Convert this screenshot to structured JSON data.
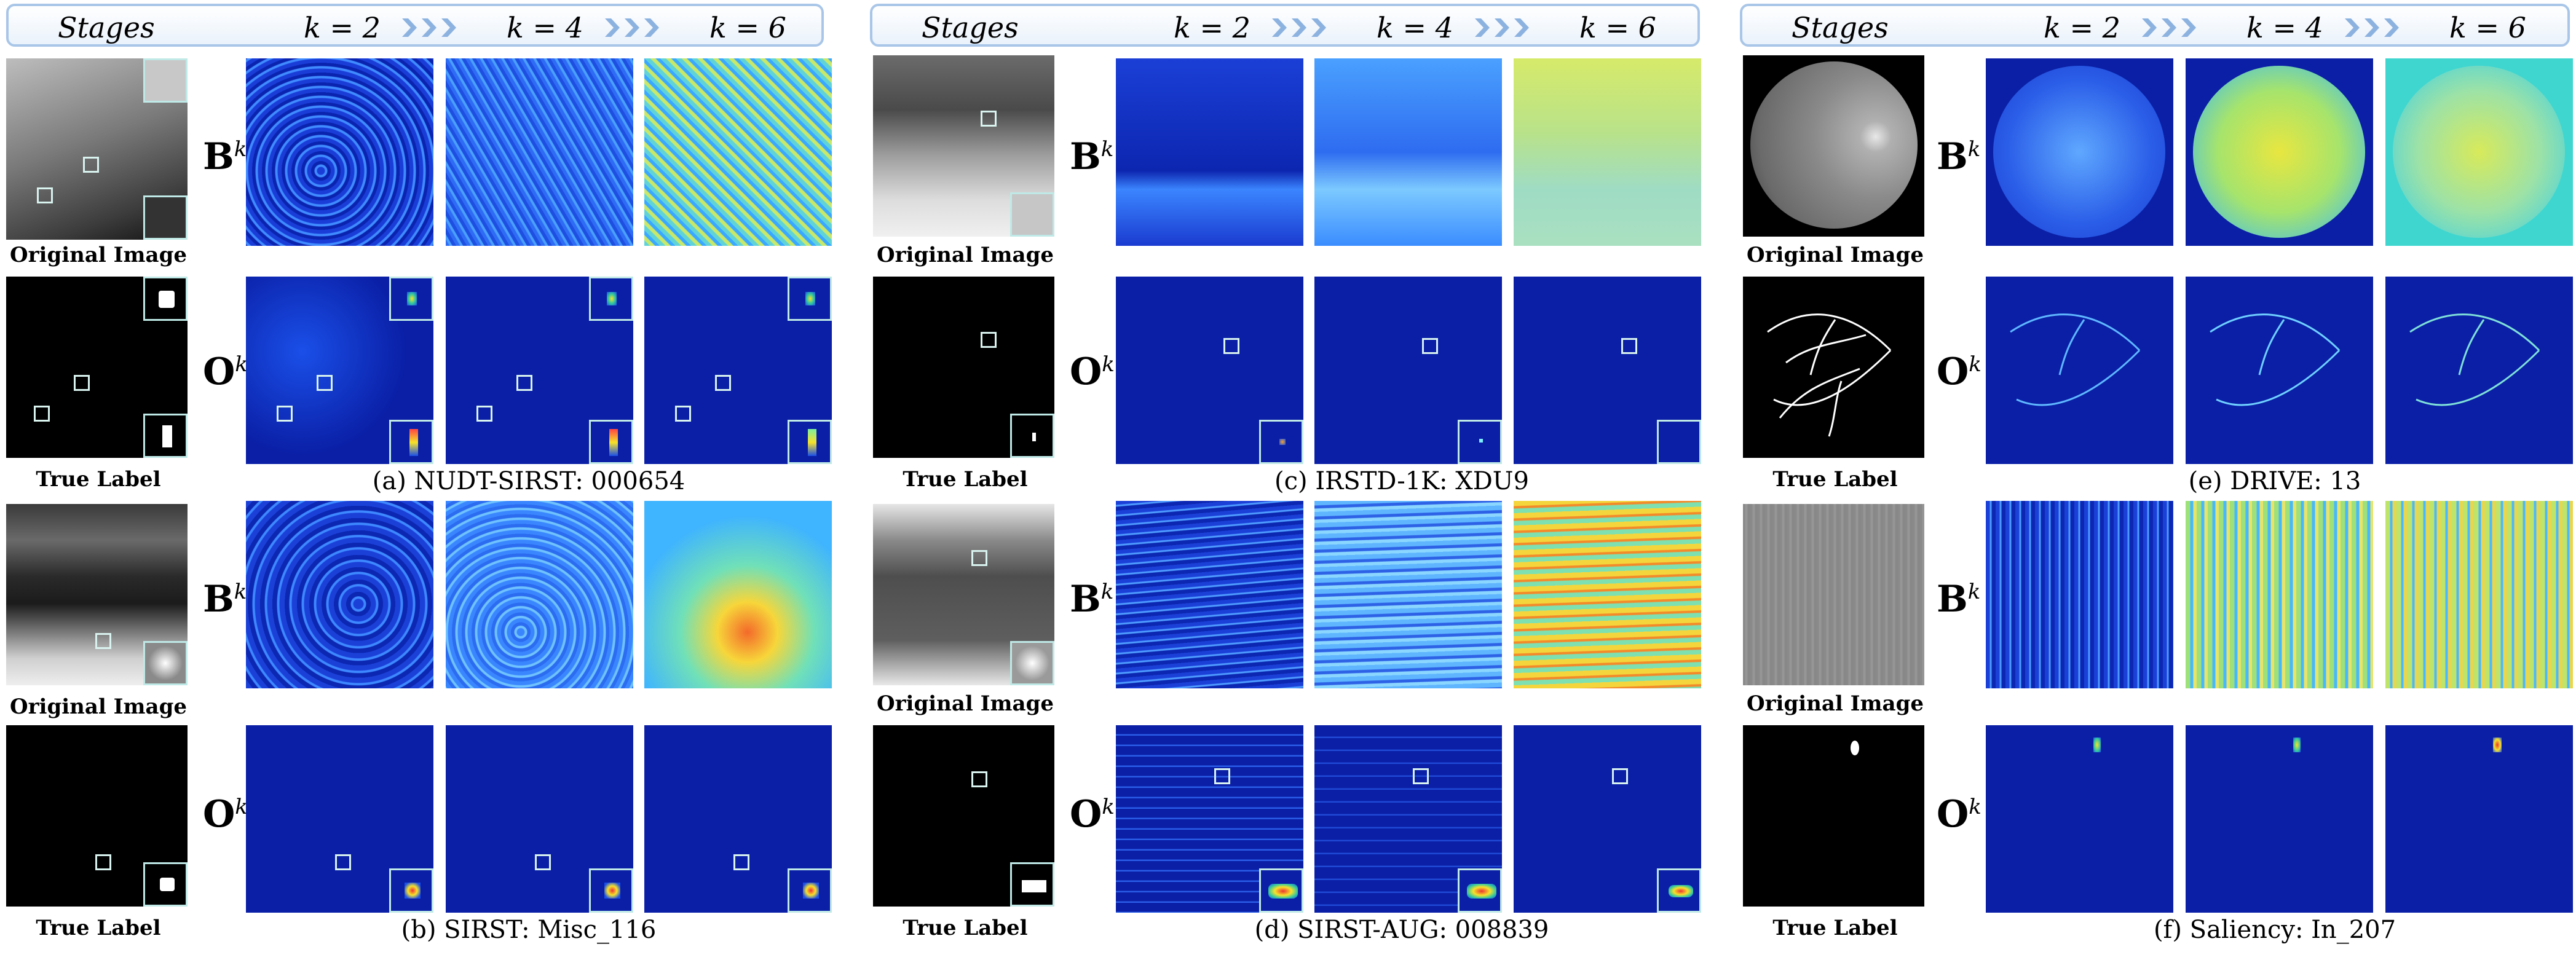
{
  "header": {
    "stages_label": "Stages",
    "k2_label": "k = 2",
    "k4_label": "k = 4",
    "k6_label": "k = 6"
  },
  "row_labels": {
    "b": "B",
    "o": "O",
    "sup": "k"
  },
  "image_labels": {
    "original": "Original Image",
    "true": "True Label"
  },
  "panels": [
    {
      "caption": "(a) NUDT-SIRST:  000654"
    },
    {
      "caption": "(b) SIRST:  Misc_116"
    },
    {
      "caption": "(c) IRSTD-1K:  XDU9"
    },
    {
      "caption": "(d) SIRST-AUG: 008839"
    },
    {
      "caption": "(e) DRIVE: 13"
    },
    {
      "caption": "(f) Saliency: In_207"
    }
  ],
  "colors": {
    "header_border": "#a9c6e8",
    "heatmap_low": "#0a1fa6",
    "heatmap_mid": "#2f7cff",
    "heatmap_high": "#f2e12a",
    "inset_border": "#bfe9e6"
  }
}
